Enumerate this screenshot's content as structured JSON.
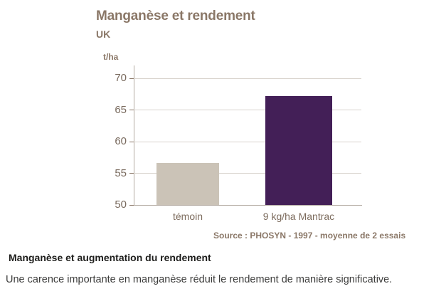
{
  "chart_data": {
    "type": "bar",
    "title": "Manganèse et rendement",
    "subtitle": "UK",
    "ylabel": "t/ha",
    "xlabel": "",
    "categories": [
      "témoin",
      "9 kg/ha Mantrac"
    ],
    "values": [
      56.6,
      67.2
    ],
    "ylim": [
      50,
      70
    ],
    "yticks": [
      50,
      55,
      60,
      65,
      70
    ],
    "grid": true,
    "legend": false,
    "bar_colors": [
      "#cbc3b7",
      "#431f57"
    ],
    "source": "Source : PHOSYN - 1997 - moyenne de 2 essais"
  },
  "caption": {
    "heading": "Manganèse et augmentation du rendement",
    "text": "Une carence importante en manganèse réduit le rendement de manière significative."
  },
  "colors": {
    "title_text": "#8a7767",
    "axis_text": "#796a5e",
    "gridline": "#d8d3cc",
    "axis_line": "#b3aaa1",
    "bar_control": "#cbc3b7",
    "bar_treatment": "#431f57",
    "heading_text": "#1d1d1b",
    "body_text": "#3c3c3b"
  }
}
